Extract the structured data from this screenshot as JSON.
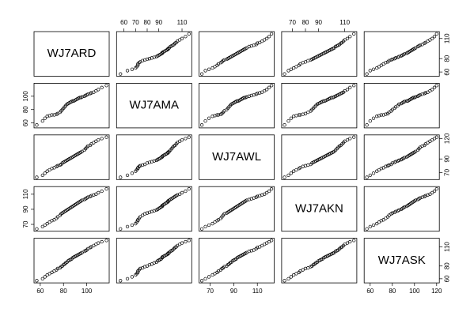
{
  "chart_data": {
    "type": "pairs",
    "point_color": "#000000",
    "variables": [
      {
        "name": "WJ7ARD",
        "lim": [
          56,
          118
        ],
        "xticks": [
          60,
          80,
          100
        ],
        "yticks": [
          60,
          80,
          110
        ],
        "values": [
          57,
          62,
          64,
          66,
          68,
          70,
          72,
          74,
          75,
          77,
          78,
          79,
          80,
          81,
          82,
          83,
          84,
          85,
          86,
          87,
          88,
          89,
          90,
          91,
          92,
          93,
          94,
          95,
          96,
          98,
          99,
          100,
          101,
          103,
          104,
          106,
          108,
          110,
          113,
          117
        ]
      },
      {
        "name": "WJ7AMA",
        "lim": [
          55,
          117
        ],
        "xticks": [
          60,
          70,
          80,
          90,
          110
        ],
        "yticks": [
          60,
          80,
          100
        ],
        "values": [
          57,
          63,
          67,
          70,
          71,
          72,
          72,
          73,
          74,
          76,
          78,
          80,
          82,
          84,
          86,
          88,
          89,
          90,
          91,
          92,
          93,
          93,
          94,
          95,
          96,
          97,
          98,
          98,
          99,
          100,
          101,
          102,
          103,
          104,
          105,
          106,
          108,
          110,
          113,
          116
        ]
      },
      {
        "name": "WJ7AWL",
        "lim": [
          62,
          123
        ],
        "xticks": [
          70,
          90,
          110
        ],
        "yticks": [
          70,
          90,
          120
        ],
        "values": [
          63,
          66,
          69,
          72,
          74,
          76,
          77,
          79,
          80,
          81,
          82,
          84,
          85,
          86,
          87,
          88,
          89,
          90,
          91,
          92,
          93,
          94,
          95,
          96,
          97,
          98,
          99,
          100,
          101,
          103,
          105,
          107,
          109,
          110,
          112,
          114,
          116,
          118,
          120,
          122
        ]
      },
      {
        "name": "WJ7AKN",
        "lim": [
          63,
          118
        ],
        "xticks": [
          70,
          80,
          90,
          110
        ],
        "yticks": [
          70,
          90,
          110
        ],
        "values": [
          64,
          67,
          69,
          71,
          73,
          75,
          76,
          78,
          80,
          82,
          84,
          85,
          86,
          87,
          88,
          89,
          90,
          91,
          92,
          93,
          94,
          95,
          96,
          97,
          98,
          99,
          100,
          101,
          102,
          103,
          104,
          105,
          106,
          107,
          108,
          109,
          110,
          112,
          114,
          117
        ]
      },
      {
        "name": "WJ7ASK",
        "lim": [
          56,
          121
        ],
        "xticks": [
          60,
          80,
          100,
          120
        ],
        "yticks": [
          60,
          80,
          110
        ],
        "values": [
          57,
          60,
          63,
          66,
          68,
          70,
          72,
          74,
          76,
          77,
          79,
          80,
          82,
          83,
          85,
          86,
          88,
          89,
          90,
          91,
          93,
          94,
          95,
          96,
          97,
          98,
          99,
          100,
          101,
          103,
          104,
          105,
          107,
          109,
          110,
          112,
          114,
          116,
          118,
          120
        ]
      }
    ]
  }
}
